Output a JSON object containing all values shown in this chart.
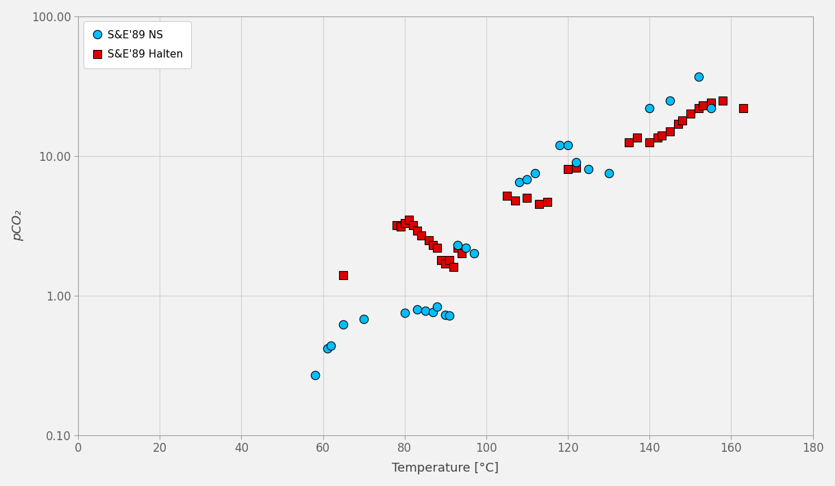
{
  "ns_x": [
    58,
    61,
    62,
    65,
    70,
    80,
    83,
    85,
    87,
    88,
    90,
    91,
    93,
    95,
    97,
    108,
    110,
    112,
    118,
    120,
    122,
    125,
    130,
    140,
    145,
    152,
    155
  ],
  "ns_y": [
    0.27,
    0.42,
    0.44,
    0.62,
    0.68,
    0.75,
    0.8,
    0.78,
    0.76,
    0.83,
    0.73,
    0.72,
    2.3,
    2.2,
    2.0,
    6.5,
    6.8,
    7.5,
    12,
    12,
    9.0,
    8.0,
    7.5,
    22,
    25,
    37,
    22
  ],
  "halten_x": [
    65,
    78,
    79,
    80,
    81,
    82,
    83,
    84,
    86,
    87,
    88,
    89,
    90,
    91,
    92,
    93,
    94,
    105,
    107,
    110,
    113,
    115,
    120,
    122,
    135,
    137,
    140,
    142,
    143,
    145,
    147,
    148,
    150,
    152,
    153,
    155,
    158,
    163
  ],
  "halten_y": [
    1.4,
    3.2,
    3.1,
    3.3,
    3.5,
    3.2,
    2.9,
    2.7,
    2.5,
    2.3,
    2.2,
    1.8,
    1.7,
    1.8,
    1.6,
    2.2,
    2.0,
    5.2,
    4.8,
    5.0,
    4.5,
    4.7,
    8.0,
    8.2,
    12.5,
    13.5,
    12.5,
    13.5,
    14.0,
    15.0,
    17.0,
    18.0,
    20.0,
    22.0,
    23.0,
    24.0,
    25.0,
    22.0
  ],
  "ns_color": "#00BFFF",
  "halten_color": "#DD0000",
  "ns_label": "S&E'89 NS",
  "halten_label": "S&E'89 Halten",
  "xlabel": "Temperature [°C]",
  "ylabel": "pCO₂",
  "xlim": [
    0,
    180
  ],
  "ylim": [
    0.1,
    100.0
  ],
  "xticks": [
    0,
    20,
    40,
    60,
    80,
    100,
    120,
    140,
    160,
    180
  ],
  "yticks": [
    0.1,
    1.0,
    10.0,
    100.0
  ],
  "ytick_labels": [
    "0.10",
    "1.00",
    "10.00",
    "100.00"
  ],
  "grid_color": "#D0D0D0",
  "plot_bg_color": "#F2F2F2",
  "fig_bg_color": "#F2F2F2",
  "tick_color": "#606060",
  "spine_color": "#A0A0A0",
  "label_color": "#404040",
  "marker_size": 80,
  "marker_edge_color": "#000000",
  "marker_edge_width": 0.8
}
